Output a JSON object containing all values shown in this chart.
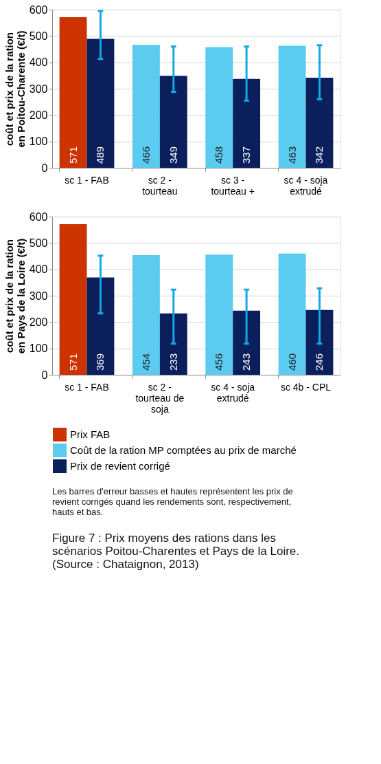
{
  "chart_data": [
    {
      "type": "bar",
      "ylabel": "coût et prix de la ration en Poitou-Charente (€/t)",
      "categories": [
        "sc 1 - FAB",
        "sc 2 - tourteau",
        "sc 3 - tourteau +",
        "sc 4 - soja extrudé"
      ],
      "ylim": [
        0,
        600
      ],
      "yticks": [
        0,
        100,
        200,
        300,
        400,
        500,
        600
      ],
      "grid": "y",
      "data_labels": true,
      "legend": "bottom",
      "series": [
        {
          "name": "Prix FAB",
          "color": "#cc3300",
          "values": [
            571,
            null,
            null,
            null
          ]
        },
        {
          "name": "Coût de la ration MP comptées au prix de marché",
          "color": "#5bcbf0",
          "values": [
            null,
            466,
            458,
            463
          ]
        },
        {
          "name": "Prix de revient corrigé",
          "color": "#0a1f5c",
          "values": [
            489,
            349,
            337,
            342
          ],
          "errors": [
            [
              413,
              595
            ],
            [
              288,
              460
            ],
            [
              255,
              460
            ],
            [
              260,
              465
            ]
          ]
        }
      ]
    },
    {
      "type": "bar",
      "ylabel": "coût et prix de la ration en Pays de la Loire (€/t)",
      "categories": [
        "sc 1 - FAB",
        "sc 2 - tourteau de soja",
        "sc 4 - soja extrudé",
        "sc 4b - CPL"
      ],
      "ylim": [
        0,
        600
      ],
      "yticks": [
        0,
        100,
        200,
        300,
        400,
        500,
        600
      ],
      "grid": "y",
      "data_labels": true,
      "legend": "bottom",
      "series": [
        {
          "name": "Prix FAB",
          "color": "#cc3300",
          "values": [
            571,
            null,
            null,
            null
          ]
        },
        {
          "name": "Coût de la ration MP comptées au prix de marché",
          "color": "#5bcbf0",
          "values": [
            null,
            454,
            456,
            460
          ]
        },
        {
          "name": "Prix de revient corrigé",
          "color": "#0a1f5c",
          "values": [
            369,
            233,
            243,
            246
          ],
          "errors": [
            [
              233,
              452
            ],
            [
              118,
              323
            ],
            [
              118,
              323
            ],
            [
              118,
              328
            ]
          ]
        }
      ],
      "annotations": [
        "Les barres d'erreur basses et hautes représentent les prix de revient corrigés quand les rendements sont, respectivement, hauts et bas.",
        "Figure 7 : Prix moyens des rations dans les scénarios Poitou-Charentes et Pays de la Loire. (Source : Chataignon, 2013)"
      ]
    }
  ]
}
